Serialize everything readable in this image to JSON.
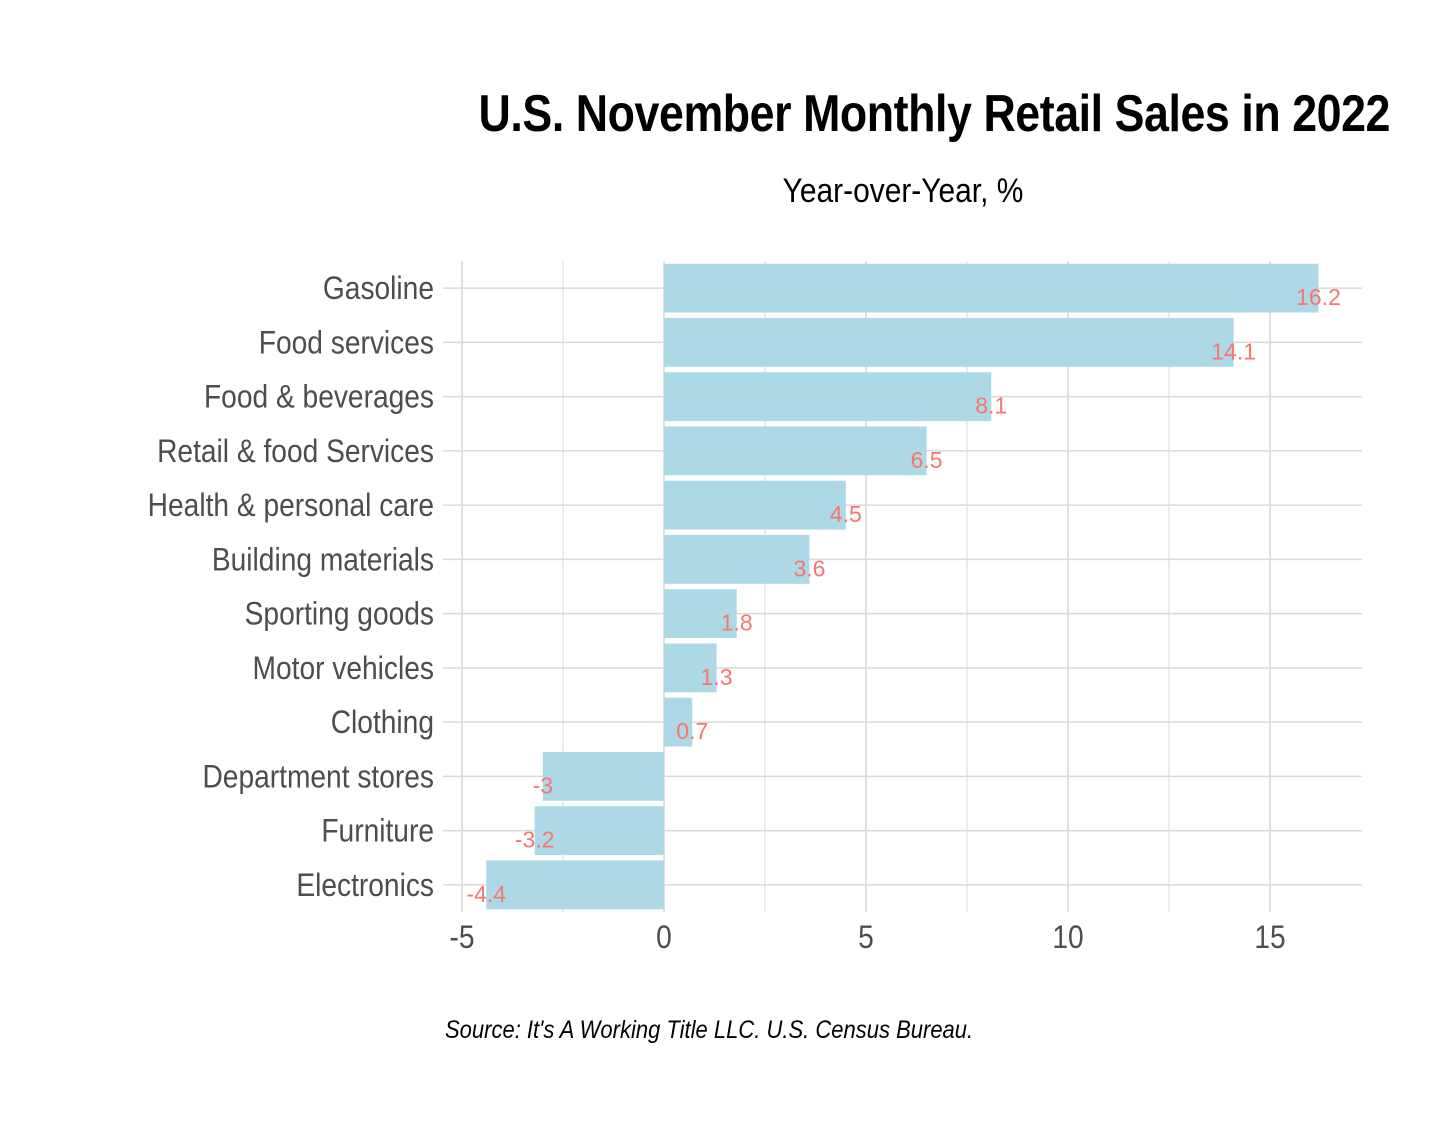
{
  "chart_data": {
    "type": "bar",
    "orientation": "horizontal",
    "title": "U.S. November Monthly Retail Sales in 2022",
    "subtitle": "Year-over-Year, %",
    "caption": "Source: It's A Working Title LLC. U.S. Census Bureau.",
    "categories": [
      "Gasoline",
      "Food services",
      "Food & beverages",
      "Retail & food Services",
      "Health & personal care",
      "Building materials",
      "Sporting goods",
      "Motor vehicles",
      "Clothing",
      "Department stores",
      "Furniture",
      "Electronics"
    ],
    "values": [
      16.2,
      14.1,
      8.1,
      6.5,
      4.5,
      3.6,
      1.8,
      1.3,
      0.7,
      -3,
      -3.2,
      -4.4
    ],
    "data_labels": [
      "16.2",
      "14.1",
      "8.1",
      "6.5",
      "4.5",
      "3.6",
      "1.8",
      "1.3",
      "0.7",
      "-3",
      "-3.2",
      "-4.4"
    ],
    "xlim": [
      -5,
      17.3
    ],
    "x_ticks": [
      -5,
      0,
      5,
      10,
      15
    ],
    "x_tick_labels": [
      "-5",
      "0",
      "5",
      "10",
      "15"
    ],
    "xlabel": "",
    "ylabel": "",
    "grid": true,
    "legend": "none",
    "colors": {
      "bar": "#add8e6",
      "data_label": "#f8766d",
      "grid": "#d9d9d9",
      "axis_text": "#4d4d4d"
    }
  }
}
